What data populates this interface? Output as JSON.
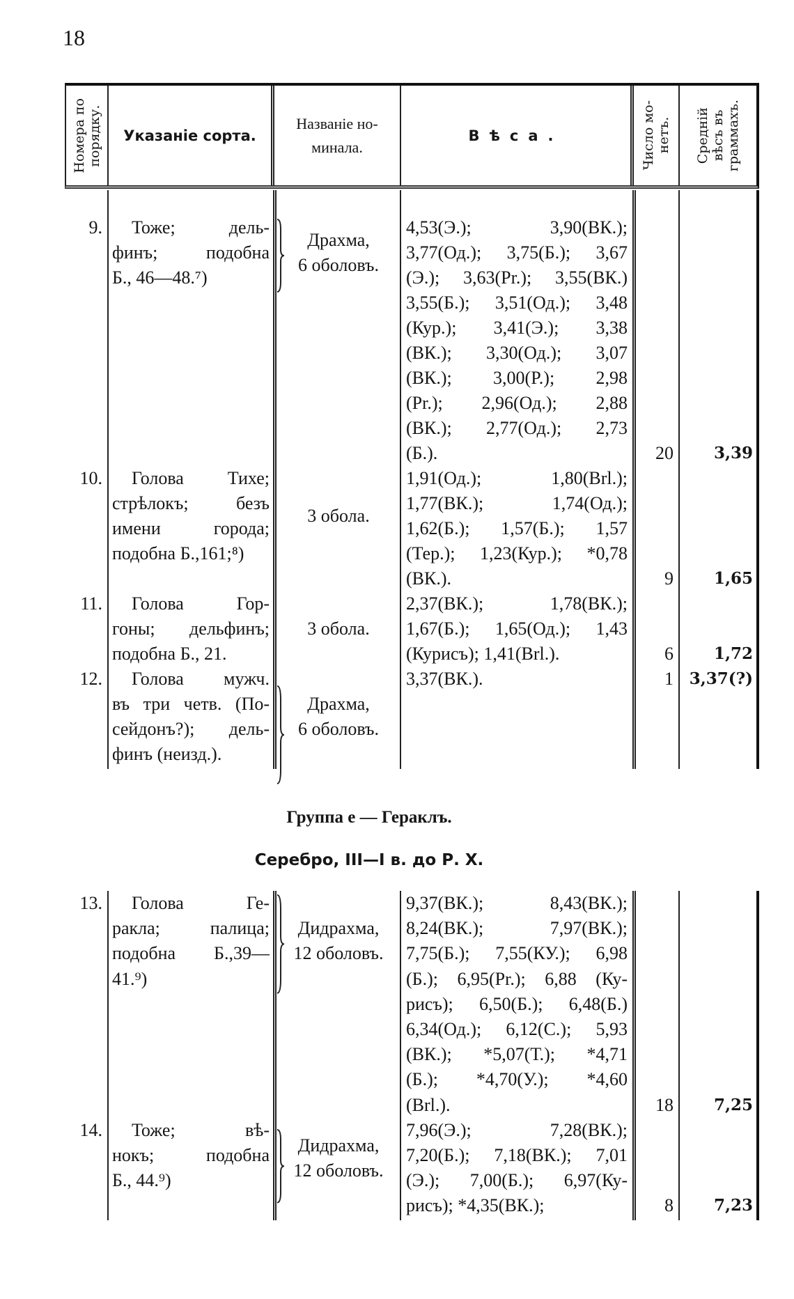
{
  "page_number": "18",
  "header": {
    "col_number": [
      "Номера по",
      "порядку."
    ],
    "col_sort": "Указаніе сорта.",
    "col_nominal": [
      "Названіе но-",
      "минала."
    ],
    "col_weights": "Вѣса.",
    "col_count": [
      "Число мо-",
      "нетъ."
    ],
    "col_avg": [
      "Средній",
      "вѣсъ въ",
      "граммахъ."
    ]
  },
  "sections": [
    {
      "rows": [
        {
          "number": "9.",
          "sort": [
            "Тоже; дель-",
            "финъ; подобна",
            "Б., 46—48.⁷)"
          ],
          "nominal": [
            "Драхма,",
            "6 оболовъ."
          ],
          "weights": [
            "4,53(Э.); 3,90(ВК.);",
            "3,77(Од.); 3,75(Б.); 3,67",
            "(Э.); 3,63(Pr.); 3,55(ВК.)",
            "3,55(Б.); 3,51(Од.); 3,48",
            "(Кур.); 3,41(Э.); 3,38",
            "(ВК.); 3,30(Од.); 3,07",
            "(ВК.); 3,00(P.); 2,98",
            "(Pr.); 2,96(Од.); 2,88",
            "(ВК.); 2,77(Од.); 2,73",
            "(Б.)."
          ],
          "count": "20",
          "average": "3,39"
        },
        {
          "number": "10.",
          "sort": [
            "Голова Тихе;",
            "стрѣлокъ; безъ",
            "имени города;",
            "подобна Б.,161;⁸)"
          ],
          "nominal": [
            "3 обола."
          ],
          "weights": [
            "1,91(Од.); 1,80(Brl.);",
            "1,77(ВК.); 1,74(Од.);",
            "1,62(Б.); 1,57(Б.); 1,57",
            "(Тер.); 1,23(Кур.); *0,78",
            "(ВК.)."
          ],
          "count": "9",
          "average": "1,65"
        },
        {
          "number": "11.",
          "sort": [
            "Голова Гор-",
            "гоны; дельфинъ;",
            "подобна Б., 21."
          ],
          "nominal": [
            "3 обола."
          ],
          "weights": [
            "2,37(ВК.); 1,78(ВК.);",
            "1,67(Б.); 1,65(Од.); 1,43",
            "(Курисъ); 1,41(Brl.)."
          ],
          "count": "6",
          "average": "1,72"
        },
        {
          "number": "12.",
          "sort": [
            "Голова мужч.",
            "въ три четв. (По-",
            "сейдонъ?); дель-",
            "финъ (неизд.)."
          ],
          "nominal": [
            "Драхма,",
            "6 оболовъ."
          ],
          "weights": [
            "3,37(ВК.)."
          ],
          "count": "1",
          "average": "3,37(?)"
        }
      ]
    },
    {
      "group_title": "Группа е — Гераклъ.",
      "group_subtitle": "Серебро, III—I в. до Р. Х.",
      "rows": [
        {
          "number": "13.",
          "sort": [
            "Голова Ге-",
            "ракла; палица;",
            "подобна Б.,39—",
            "41.⁹)"
          ],
          "nominal": [
            "Дидрахма,",
            "12 оболовъ."
          ],
          "weights": [
            "9,37(ВК.); 8,43(ВК.);",
            "8,24(ВК.); 7,97(ВК.);",
            "7,75(Б.); 7,55(КУ.); 6,98",
            "(Б.); 6,95(Pr.); 6,88 (Ку-",
            "рисъ); 6,50(Б.); 6,48(Б.)",
            "6,34(Од.); 6,12(C.); 5,93",
            "(ВК.); *5,07(Т.); *4,71",
            "(Б.); *4,70(У.); *4,60",
            "(Brl.)."
          ],
          "count": "18",
          "average": "7,25"
        },
        {
          "number": "14.",
          "sort": [
            "Тоже; вѣ-",
            "нокъ; подобна",
            "Б., 44.⁹)"
          ],
          "nominal": [
            "Дидрахма,",
            "12 оболовъ."
          ],
          "weights": [
            "7,96(Э.); 7,28(ВК.);",
            "7,20(Б.); 7,18(ВК.); 7,01",
            "(Э.); 7,00(Б.); 6,97(Ку-",
            "рисъ); *4,35(ВК.);"
          ],
          "count": "8",
          "average": "7,23"
        }
      ]
    }
  ]
}
